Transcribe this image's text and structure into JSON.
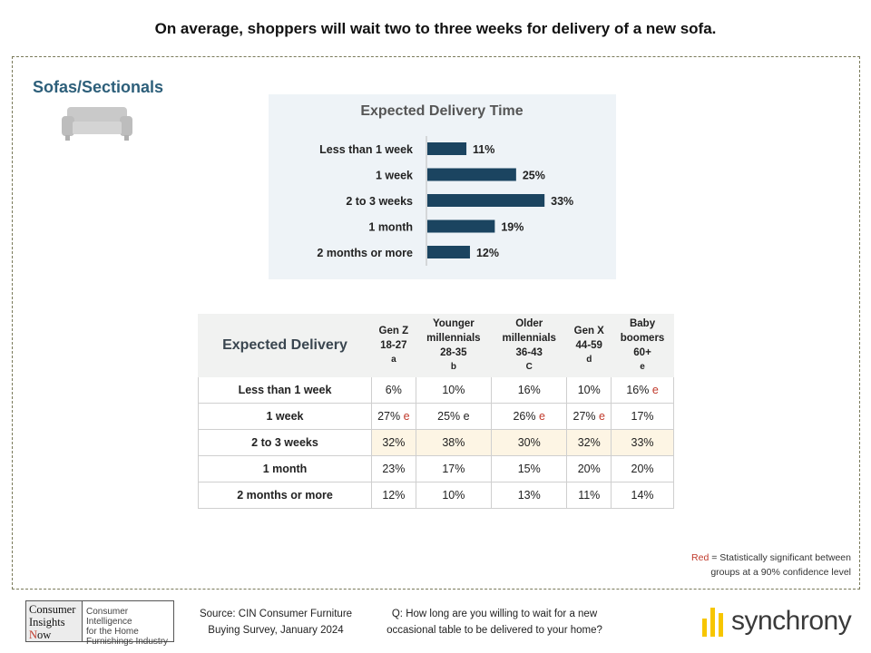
{
  "title": "On average, shoppers  will wait two to three weeks for delivery of a new sofa.",
  "section": {
    "title": "Sofas/Sectionals",
    "icon": "sofa-icon"
  },
  "chart_data": {
    "type": "bar",
    "orientation": "horizontal",
    "title": "Expected Delivery Time",
    "categories": [
      "Less than 1 week",
      "1 week",
      "2 to 3 weeks",
      "1 month",
      "2 months or more"
    ],
    "values": [
      11,
      25,
      33,
      19,
      12
    ],
    "value_labels": [
      "11%",
      "25%",
      "33%",
      "19%",
      "12%"
    ],
    "unit": "%",
    "xlim": [
      0,
      35
    ],
    "bar_color": "#1b4460",
    "grid": false,
    "legend": "none"
  },
  "table": {
    "title": "Expected Delivery",
    "columns": [
      {
        "label_lines": [
          "Gen Z",
          "18-27"
        ],
        "code": "a"
      },
      {
        "label_lines": [
          "Younger",
          "millennials",
          "28-35"
        ],
        "code": "b"
      },
      {
        "label_lines": [
          "Older",
          "millennials",
          "36-43"
        ],
        "code": "C"
      },
      {
        "label_lines": [
          "Gen X",
          "44-59"
        ],
        "code": "d"
      },
      {
        "label_lines": [
          "Baby",
          "boomers",
          "60+"
        ],
        "code": "e"
      }
    ],
    "rows": [
      {
        "label": "Less than 1 week",
        "highlight": false,
        "cells": [
          {
            "v": "6%",
            "sig": ""
          },
          {
            "v": "10%",
            "sig": ""
          },
          {
            "v": "16%",
            "sig": ""
          },
          {
            "v": "10%",
            "sig": ""
          },
          {
            "v": "16%",
            "sig": "e"
          }
        ]
      },
      {
        "label": "1 week",
        "highlight": false,
        "cells": [
          {
            "v": "27%",
            "sig": "e"
          },
          {
            "v": "25% e",
            "sig": ""
          },
          {
            "v": "26%",
            "sig": "e"
          },
          {
            "v": "27%",
            "sig": "e"
          },
          {
            "v": "17%",
            "sig": ""
          }
        ]
      },
      {
        "label": "2 to 3 weeks",
        "highlight": true,
        "cells": [
          {
            "v": "32%",
            "sig": ""
          },
          {
            "v": "38%",
            "sig": ""
          },
          {
            "v": "30%",
            "sig": ""
          },
          {
            "v": "32%",
            "sig": ""
          },
          {
            "v": "33%",
            "sig": ""
          }
        ]
      },
      {
        "label": "1 month",
        "highlight": false,
        "cells": [
          {
            "v": "23%",
            "sig": ""
          },
          {
            "v": "17%",
            "sig": ""
          },
          {
            "v": "15%",
            "sig": ""
          },
          {
            "v": "20%",
            "sig": ""
          },
          {
            "v": "20%",
            "sig": ""
          }
        ]
      },
      {
        "label": "2 months or more",
        "highlight": false,
        "cells": [
          {
            "v": "12%",
            "sig": ""
          },
          {
            "v": "10%",
            "sig": ""
          },
          {
            "v": "13%",
            "sig": ""
          },
          {
            "v": "11%",
            "sig": ""
          },
          {
            "v": "14%",
            "sig": ""
          }
        ]
      }
    ],
    "highlight_color": "#fdf5e4",
    "sig_color": "#c0392b"
  },
  "legend_note": {
    "red_word": "Red",
    "line1": " = Statistically significant between",
    "line2": "groups at a 90% confidence level"
  },
  "footer": {
    "logo": {
      "left_lines": [
        "Consumer",
        "Insights"
      ],
      "left_last_initial": "N",
      "left_last_rest": "ow",
      "right_lines": [
        "Consumer Intelligence",
        "for the Home",
        "Furnishings Industry"
      ]
    },
    "source_lines": [
      "Source:  CIN Consumer Furniture",
      "Buying Survey, January 2024"
    ],
    "question_lines": [
      "Q: How long are you willing to wait for a new",
      "occasional table to be delivered to your home?"
    ],
    "brand": "synchrony",
    "brand_icon": "synchrony-bars-icon",
    "brand_color": "#f7c600"
  }
}
